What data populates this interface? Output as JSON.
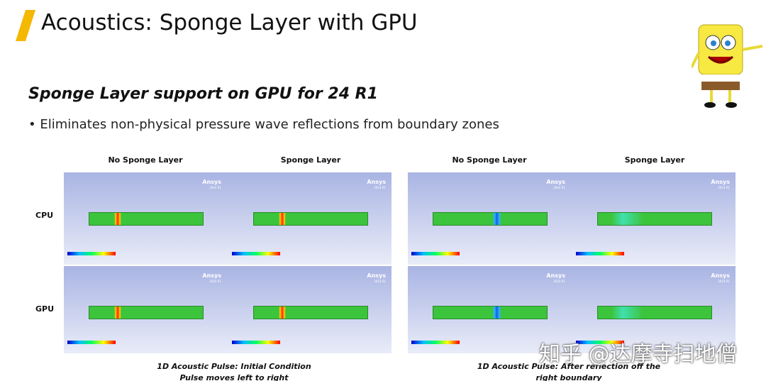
{
  "header": {
    "title": "Acoustics: Sponge Layer with GPU"
  },
  "section": {
    "heading": "Sponge Layer support on GPU for 24 R1",
    "bullets": [
      "Eliminates non-physical pressure wave reflections from boundary zones"
    ]
  },
  "row_labels": [
    "CPU",
    "GPU"
  ],
  "figures": [
    {
      "columns": [
        "No Sponge Layer",
        "Sponge Layer"
      ],
      "caption": [
        "1D Acoustic Pulse: Initial Condition",
        "Pulse moves left to right"
      ]
    },
    {
      "columns": [
        "No Sponge Layer",
        "Sponge Layer"
      ],
      "caption": [
        "1D Acoustic Pulse: After reflection off the",
        "right boundary"
      ]
    }
  ],
  "logo": {
    "name": "Ansys",
    "version": "2024 R1"
  },
  "watermark": "知乎 @达摩寺扫地僧"
}
